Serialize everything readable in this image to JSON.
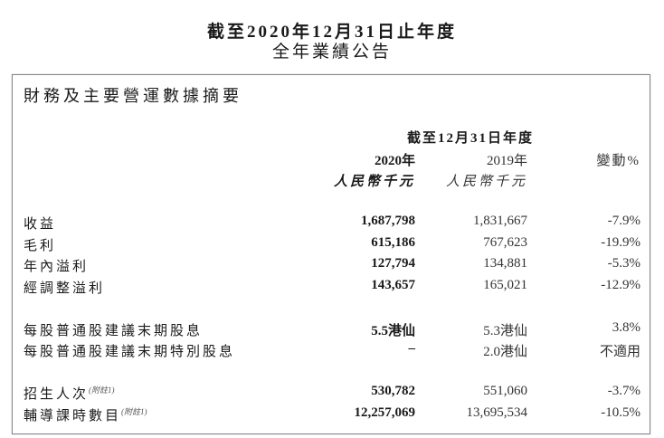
{
  "header": {
    "title_line1": "截至2020年12月31日止年度",
    "title_line2": "全年業績公告"
  },
  "section": {
    "title": "財務及主要營運數據摘要"
  },
  "table": {
    "period_header": "截至12月31日年度",
    "columns": [
      {
        "label": "2020年",
        "unit": "人民幣千元"
      },
      {
        "label": "2019年",
        "unit": "人民幣千元"
      },
      {
        "label": "變動%"
      }
    ],
    "rows": [
      {
        "label": "收益",
        "note": "",
        "v2020": "1,687,798",
        "v2019": "1,831,667",
        "change": "-7.9%"
      },
      {
        "label": "毛利",
        "note": "",
        "v2020": "615,186",
        "v2019": "767,623",
        "change": "-19.9%"
      },
      {
        "label": "年內溢利",
        "note": "",
        "v2020": "127,794",
        "v2019": "134,881",
        "change": "-5.3%"
      },
      {
        "label": "經調整溢利",
        "note": "",
        "v2020": "143,657",
        "v2019": "165,021",
        "change": "-12.9%"
      },
      {
        "label": "每股普通股建議末期股息",
        "note": "",
        "v2020": "5.5港仙",
        "v2019": "5.3港仙",
        "change": "3.8%"
      },
      {
        "label": "每股普通股建議末期特別股息",
        "note": "",
        "v2020": "–",
        "v2019": "2.0港仙",
        "change": "不適用"
      },
      {
        "label": "招生人次",
        "note": "(附註1)",
        "v2020": "530,782",
        "v2019": "551,060",
        "change": "-3.7%"
      },
      {
        "label": "輔導課時數目",
        "note": "(附註1)",
        "v2020": "12,257,069",
        "v2019": "13,695,534",
        "change": "-10.5%"
      }
    ]
  }
}
